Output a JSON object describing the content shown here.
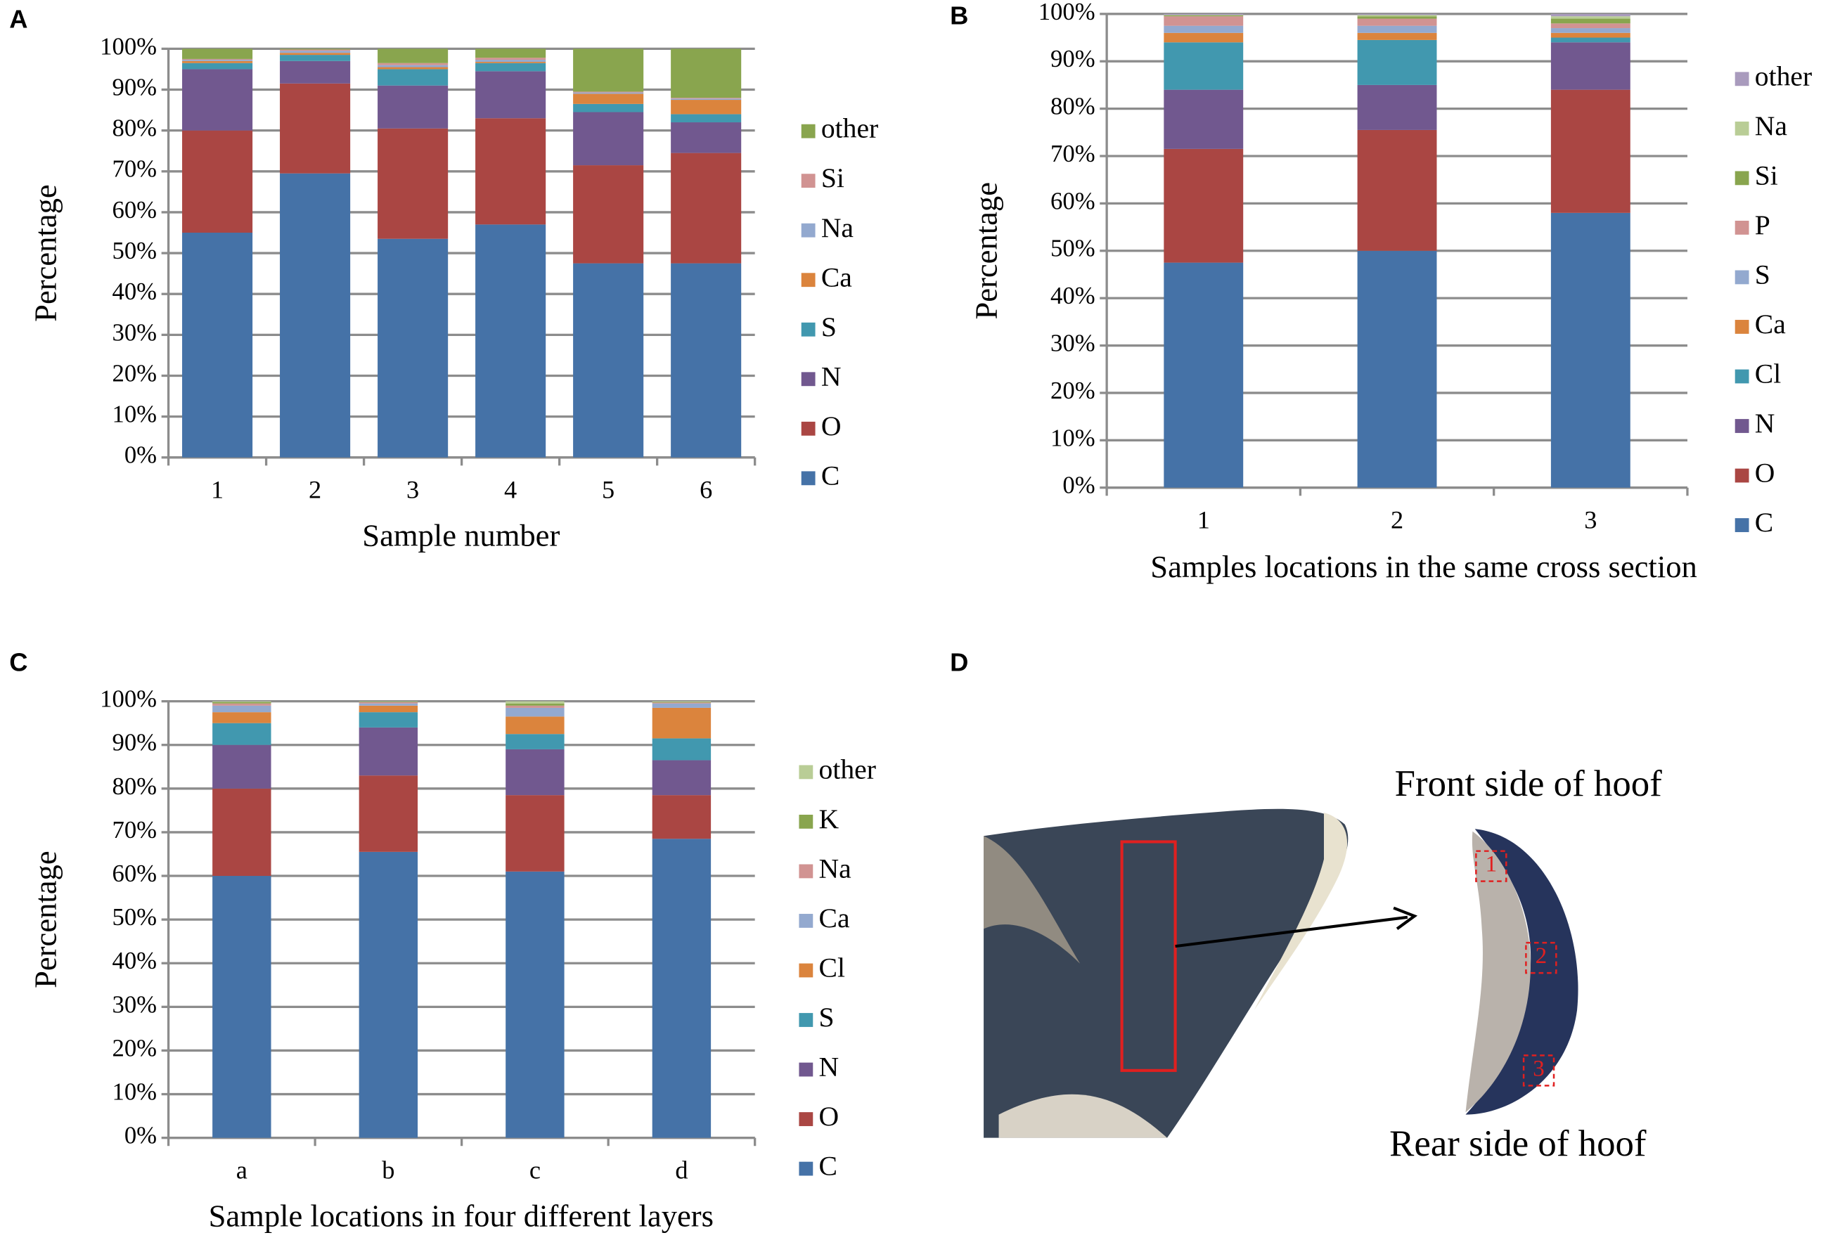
{
  "chart_data": [
    {
      "type": "bar",
      "stacked": true,
      "grid": true,
      "label": "A",
      "x_label": "Sample number",
      "y_label": "Percentage",
      "categories": [
        "1",
        "2",
        "3",
        "4",
        "5",
        "6"
      ],
      "ylim": [
        0,
        100
      ],
      "yticks": [
        {
          "value": 0,
          "label": "0%"
        },
        {
          "value": 10,
          "label": "10%"
        },
        {
          "value": 20,
          "label": "20%"
        },
        {
          "value": 30,
          "label": "30%"
        },
        {
          "value": 40,
          "label": "40%"
        },
        {
          "value": 50,
          "label": "50%"
        },
        {
          "value": 60,
          "label": "60%"
        },
        {
          "value": 70,
          "label": "70%"
        },
        {
          "value": 80,
          "label": "80%"
        },
        {
          "value": 90,
          "label": "90%"
        },
        {
          "value": 100,
          "label": "100%"
        }
      ],
      "series": [
        {
          "name": "C",
          "color": "#4572a7",
          "values": [
            55,
            69.5,
            53.5,
            57,
            47.5,
            47.5
          ]
        },
        {
          "name": "O",
          "color": "#aa4643",
          "values": [
            25,
            22,
            27,
            26,
            24,
            27
          ]
        },
        {
          "name": "N",
          "color": "#71588f",
          "values": [
            15,
            5.5,
            10.5,
            11.5,
            13,
            7.5
          ]
        },
        {
          "name": "S",
          "color": "#4198af",
          "values": [
            1.5,
            1.5,
            4,
            2,
            2,
            2
          ]
        },
        {
          "name": "Ca",
          "color": "#db843d",
          "values": [
            0.5,
            0.5,
            0.5,
            0.3,
            2.5,
            3.5
          ]
        },
        {
          "name": "Na",
          "color": "#93a9cf",
          "values": [
            0.3,
            0.5,
            0.5,
            0.5,
            0.3,
            0.3
          ]
        },
        {
          "name": "Si",
          "color": "#d19392",
          "values": [
            0.2,
            0.3,
            0.5,
            0.5,
            0.2,
            0.2
          ]
        },
        {
          "name": "other",
          "color": "#89a54e",
          "values": [
            2.5,
            0.2,
            3.5,
            2.2,
            10.5,
            12
          ]
        }
      ]
    },
    {
      "type": "bar",
      "stacked": true,
      "grid": true,
      "label": "B",
      "x_label": "Samples locations in the same cross section",
      "y_label": "Percentage",
      "categories": [
        "1",
        "2",
        "3"
      ],
      "ylim": [
        0,
        100
      ],
      "yticks": [
        {
          "value": 0,
          "label": "0%"
        },
        {
          "value": 10,
          "label": "10%"
        },
        {
          "value": 20,
          "label": "20%"
        },
        {
          "value": 30,
          "label": "30%"
        },
        {
          "value": 40,
          "label": "40%"
        },
        {
          "value": 50,
          "label": "50%"
        },
        {
          "value": 60,
          "label": "60%"
        },
        {
          "value": 70,
          "label": "70%"
        },
        {
          "value": 80,
          "label": "80%"
        },
        {
          "value": 90,
          "label": "90%"
        },
        {
          "value": 100,
          "label": "100%"
        }
      ],
      "series": [
        {
          "name": "C",
          "color": "#4572a7",
          "values": [
            47.5,
            50,
            58
          ]
        },
        {
          "name": "O",
          "color": "#aa4643",
          "values": [
            24,
            25.5,
            26
          ]
        },
        {
          "name": "N",
          "color": "#71588f",
          "values": [
            12.5,
            9.5,
            10
          ]
        },
        {
          "name": "Cl",
          "color": "#4198af",
          "values": [
            10,
            9.5,
            1
          ]
        },
        {
          "name": "Ca",
          "color": "#db843d",
          "values": [
            2,
            1.5,
            1
          ]
        },
        {
          "name": "S",
          "color": "#93a9cf",
          "values": [
            1.5,
            1.5,
            1
          ]
        },
        {
          "name": "P",
          "color": "#d19392",
          "values": [
            2,
            1.5,
            1
          ]
        },
        {
          "name": "Si",
          "color": "#89a54e",
          "values": [
            0.2,
            0.5,
            1
          ]
        },
        {
          "name": "Na",
          "color": "#b9cd96",
          "values": [
            0.1,
            0.3,
            0.5
          ]
        },
        {
          "name": "other",
          "color": "#a99bbd",
          "values": [
            0.2,
            0.2,
            0.5
          ]
        }
      ]
    },
    {
      "type": "bar",
      "stacked": true,
      "grid": true,
      "label": "C",
      "x_label": "Sample locations in four different layers",
      "y_label": "Percentage",
      "categories": [
        "a",
        "b",
        "c",
        "d"
      ],
      "ylim": [
        0,
        100
      ],
      "yticks": [
        {
          "value": 0,
          "label": "0%"
        },
        {
          "value": 10,
          "label": "10%"
        },
        {
          "value": 20,
          "label": "20%"
        },
        {
          "value": 30,
          "label": "30%"
        },
        {
          "value": 40,
          "label": "40%"
        },
        {
          "value": 50,
          "label": "50%"
        },
        {
          "value": 60,
          "label": "60%"
        },
        {
          "value": 70,
          "label": "70%"
        },
        {
          "value": 80,
          "label": "80%"
        },
        {
          "value": 90,
          "label": "90%"
        },
        {
          "value": 100,
          "label": "100%"
        }
      ],
      "series": [
        {
          "name": "C",
          "color": "#4572a7",
          "values": [
            60,
            65.5,
            61,
            68.5
          ]
        },
        {
          "name": "O",
          "color": "#aa4643",
          "values": [
            20,
            17.5,
            17.5,
            10
          ]
        },
        {
          "name": "N",
          "color": "#71588f",
          "values": [
            10,
            11,
            10.5,
            8
          ]
        },
        {
          "name": "S",
          "color": "#4198af",
          "values": [
            5,
            3.5,
            3.5,
            5
          ]
        },
        {
          "name": "Cl",
          "color": "#db843d",
          "values": [
            2.5,
            1.5,
            4,
            7
          ]
        },
        {
          "name": "Ca",
          "color": "#93a9cf",
          "values": [
            1.5,
            0.5,
            2,
            1
          ]
        },
        {
          "name": "Na",
          "color": "#d19392",
          "values": [
            0.5,
            0.3,
            0.5,
            0.2
          ]
        },
        {
          "name": "K",
          "color": "#89a54e",
          "values": [
            0.3,
            0.1,
            0.5,
            0.1
          ]
        },
        {
          "name": "other",
          "color": "#b9cd96",
          "values": [
            0.2,
            0.1,
            0.5,
            0.2
          ]
        }
      ]
    }
  ],
  "panel_d": {
    "label": "D",
    "front_label": "Front side of hoof",
    "rear_label": "Rear side of hoof",
    "markers": [
      "1",
      "2",
      "3"
    ]
  }
}
